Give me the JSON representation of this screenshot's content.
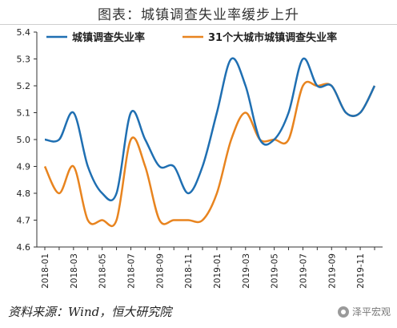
{
  "title": "图表：城镇调查失业率缓步上升",
  "source": "资料来源：Wind，恒大研究院",
  "watermark": "泽平宏观",
  "colors": {
    "series1": "#1f6fb2",
    "series2": "#e8841f"
  },
  "chart_data": {
    "type": "line",
    "title": "图表：城镇调查失业率缓步上升",
    "xlabel": "",
    "ylabel": "",
    "ylim": [
      4.6,
      5.4
    ],
    "yticks": [
      "4.6",
      "4.7",
      "4.8",
      "4.9",
      "5.0",
      "5.1",
      "5.2",
      "5.3",
      "5.4"
    ],
    "grid": false,
    "legend": "top-left",
    "x": [
      "2018-01",
      "2018-02",
      "2018-03",
      "2018-04",
      "2018-05",
      "2018-06",
      "2018-07",
      "2018-08",
      "2018-09",
      "2018-10",
      "2018-11",
      "2018-12",
      "2019-01",
      "2019-02",
      "2019-03",
      "2019-04",
      "2019-05",
      "2019-06",
      "2019-07",
      "2019-08",
      "2019-09",
      "2019-10",
      "2019-11",
      "2019-12"
    ],
    "xtick_labels": [
      "2018-01",
      "2018-03",
      "2018-05",
      "2018-07",
      "2018-09",
      "2018-11",
      "2019-01",
      "2019-03",
      "2019-05",
      "2019-07",
      "2019-09",
      "2019-11"
    ],
    "series": [
      {
        "name": "城镇调查失业率",
        "color": "#1f6fb2",
        "values": [
          5.0,
          5.0,
          5.1,
          4.9,
          4.8,
          4.8,
          5.1,
          5.0,
          4.9,
          4.9,
          4.8,
          4.9,
          5.1,
          5.3,
          5.2,
          5.0,
          5.0,
          5.1,
          5.3,
          5.2,
          5.2,
          5.1,
          5.1,
          5.2
        ]
      },
      {
        "name": "31个大城市城镇调查失业率",
        "color": "#e8841f",
        "values": [
          4.9,
          4.8,
          4.9,
          4.7,
          4.7,
          4.7,
          5.0,
          4.9,
          4.7,
          4.7,
          4.7,
          4.7,
          4.8,
          5.0,
          5.1,
          5.0,
          5.0,
          5.0,
          5.2,
          5.2,
          5.2,
          5.1,
          5.1,
          5.2
        ]
      }
    ]
  }
}
